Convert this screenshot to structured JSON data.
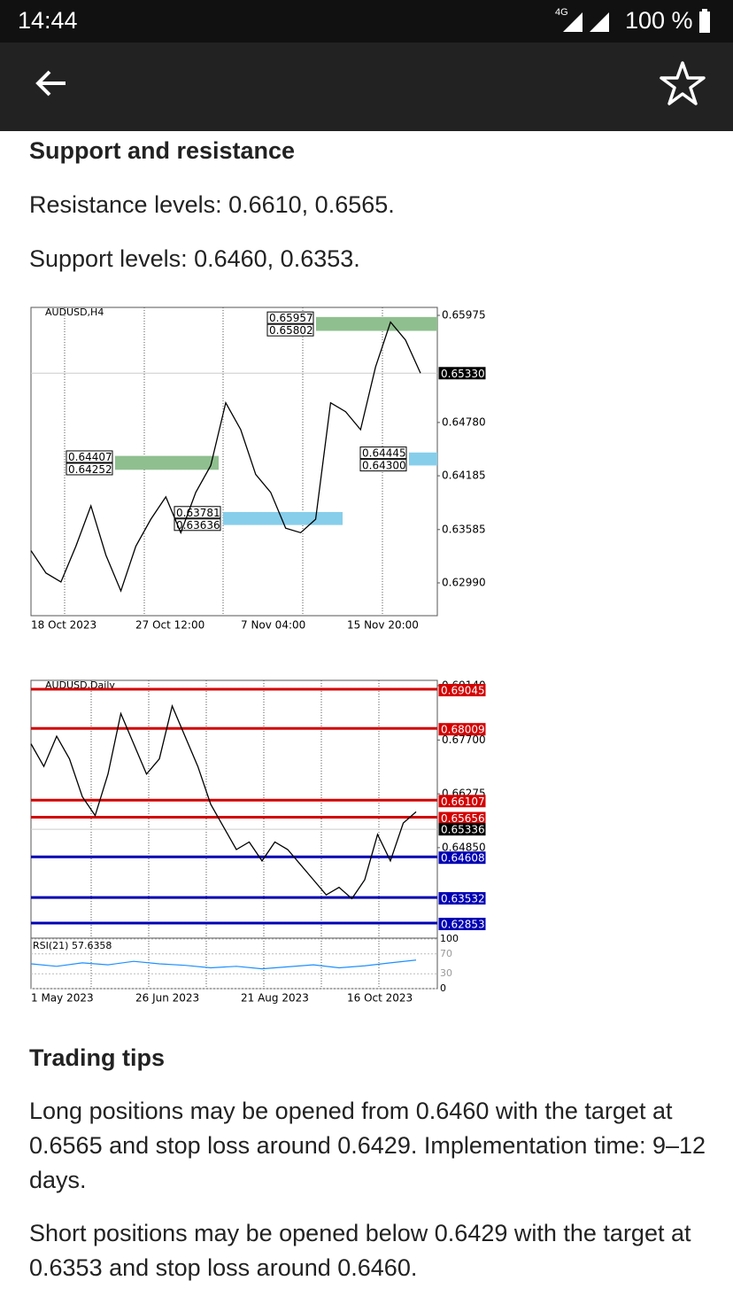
{
  "status_bar": {
    "time": "14:44",
    "network": "4G",
    "battery": "100 %"
  },
  "article": {
    "heading": "Support and resistance",
    "paragraphs": [
      "Resistance levels: 0.6610, 0.6565.",
      "Support levels: 0.6460, 0.6353."
    ],
    "tips_heading": "Trading tips",
    "tips": [
      "Long positions may be opened from 0.6460 with the target at 0.6565 and stop loss around 0.6429. Implementation time: 9–12 days.",
      "Short positions may be opened below 0.6429 with the target at 0.6353 and stop loss around 0.6460."
    ]
  },
  "chart_data": [
    {
      "type": "line",
      "title": "AUDUSD,H4",
      "color": "#000000",
      "ylim": [
        0.62624,
        0.66064
      ],
      "yticks": [
        0.65975,
        {
          "value": 0.6478,
          "label": "0.64780"
        },
        0.64185,
        0.63585,
        {
          "value": 0.6299,
          "label": "0.62990"
        }
      ],
      "x_tick_labels": [
        "18 Oct 2023",
        "27 Oct 12:00",
        "7 Nov 04:00",
        "15 Nov 20:00"
      ],
      "values": [
        0.6335,
        0.631,
        0.63,
        0.634,
        0.6385,
        0.633,
        0.629,
        0.634,
        0.637,
        0.6395,
        0.6355,
        0.64,
        0.643,
        0.65,
        0.647,
        0.642,
        0.64,
        0.636,
        0.6355,
        0.637,
        0.65,
        0.649,
        0.647,
        0.654,
        0.659,
        0.657,
        0.6533
      ],
      "current_price": {
        "value": 0.6533,
        "label": "0.65330"
      },
      "zones": [
        {
          "top": 0.65957,
          "bottom": 0.65802,
          "color": "#8fbf8f"
        },
        {
          "top": 0.64407,
          "bottom": 0.64252,
          "color": "#8fbf8f"
        },
        {
          "top": 0.63781,
          "bottom": 0.63636,
          "color": "#87ceeb"
        },
        {
          "top": 0.64445,
          "bottom": {
            "value": 0.643,
            "label": "0.64300"
          },
          "color": "#87ceeb"
        }
      ]
    },
    {
      "type": "line",
      "title": "AUDUSD,Daily",
      "color": "#000000",
      "ylim": [
        0.62478,
        0.6928
      ],
      "yticks": [
        {
          "value": 0.6914,
          "label": "0.69140"
        },
        {
          "value": 0.677,
          "label": "0.67700"
        },
        0.66275,
        {
          "value": 0.6485,
          "label": "0.64850"
        }
      ],
      "x_tick_labels": [
        "1 May 2023",
        "26 Jun 2023",
        "21 Aug 2023",
        "16 Oct 2023"
      ],
      "values": [
        0.676,
        0.67,
        0.678,
        0.672,
        0.662,
        0.657,
        0.668,
        0.684,
        0.676,
        0.668,
        0.672,
        0.686,
        0.678,
        0.67,
        0.66,
        0.654,
        0.648,
        0.65,
        0.645,
        0.65,
        0.648,
        0.644,
        0.64,
        0.636,
        0.638,
        0.635,
        0.64,
        0.652,
        0.645,
        0.655,
        0.658
      ],
      "current_price": {
        "value": 0.65336,
        "label": "0.65336"
      },
      "levels": [
        {
          "value": 0.69045,
          "color": "#d40000"
        },
        {
          "value": 0.68009,
          "color": "#d40000"
        },
        {
          "value": 0.66107,
          "color": "#d40000"
        },
        {
          "value": 0.65656,
          "color": "#d40000"
        },
        {
          "value": 0.64608,
          "color": "#0000b4"
        },
        {
          "value": 0.63532,
          "color": "#0000b4"
        },
        {
          "value": 0.62853,
          "color": "#0000b4"
        }
      ],
      "rsi": {
        "title": "RSI(21) 57.6358",
        "ylim": [
          0,
          100
        ],
        "yticks": [
          100,
          70,
          30,
          0
        ],
        "color": "#1e90ff",
        "values": [
          50,
          45,
          52,
          48,
          55,
          50,
          47,
          42,
          45,
          40,
          44,
          48,
          42,
          46,
          52,
          57.6358
        ]
      }
    }
  ]
}
